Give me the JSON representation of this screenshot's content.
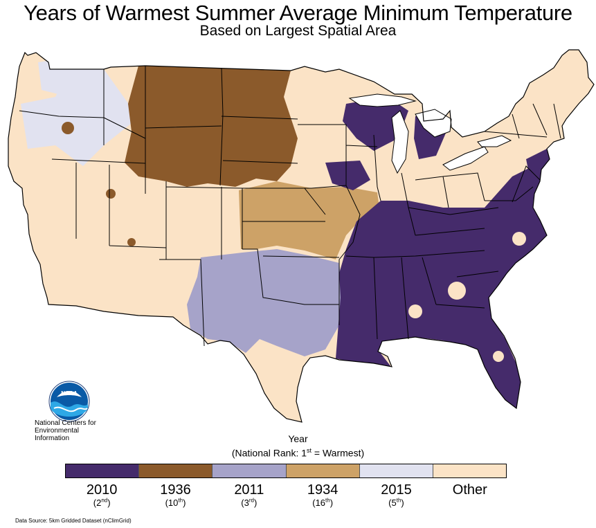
{
  "header": {
    "title": "Years of Warmest Summer Average Minimum Temperature",
    "subtitle": "Based on Largest Spatial Area"
  },
  "org": {
    "logo_text": "NOAA",
    "line1": "National Centers for",
    "line2": "Environmental",
    "line3": "Information"
  },
  "legend": {
    "title": "Year",
    "rank_open": "(National Rank: 1",
    "rank_sup": "st",
    "rank_close": " = Warmest)",
    "items": [
      {
        "year": "2010",
        "rank": "2",
        "sup": "nd",
        "color": "#452b6b"
      },
      {
        "year": "1936",
        "rank": "10",
        "sup": "th",
        "color": "#8b5a2b"
      },
      {
        "year": "2011",
        "rank": "3",
        "sup": "rd",
        "color": "#a6a3c9"
      },
      {
        "year": "1934",
        "rank": "16",
        "sup": "th",
        "color": "#cda267"
      },
      {
        "year": "2015",
        "rank": "5",
        "sup": "th",
        "color": "#e1e2f0"
      },
      {
        "year": "Other",
        "rank": "",
        "sup": "",
        "color": "#fbe3c6"
      }
    ]
  },
  "source": "Data Source: 5km Gridded Dataset (nClimGrid)"
}
